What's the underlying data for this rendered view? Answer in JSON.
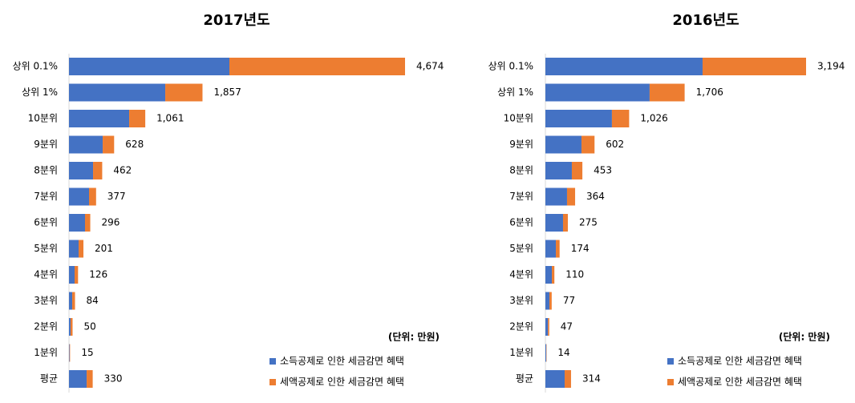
{
  "chart_data": [
    {
      "type": "bar",
      "title": "2017년도",
      "note": "(단위: 만원)",
      "categories": [
        "상위 0.1%",
        "상위 1%",
        "10분위",
        "9분위",
        "8분위",
        "7분위",
        "6분위",
        "5분위",
        "4분위",
        "3분위",
        "2분위",
        "1분위",
        "평균"
      ],
      "series": [
        {
          "name": "소득공제로 인한 세금감면 혜택",
          "color": "#4472c4",
          "values": [
            2231,
            1339,
            837,
            469,
            335,
            279,
            223,
            134,
            78,
            45,
            22,
            8,
            246
          ]
        },
        {
          "name": "세액공제로 인한 세금감면 혜택",
          "color": "#ed7d31",
          "values": [
            2443,
            518,
            224,
            159,
            127,
            98,
            73,
            67,
            48,
            39,
            28,
            7,
            84
          ]
        }
      ],
      "totals": [
        4674,
        1857,
        1061,
        628,
        462,
        377,
        296,
        201,
        126,
        84,
        50,
        15,
        330
      ],
      "total_labels": [
        "4,674",
        "1,857",
        "1,061",
        "628",
        "462",
        "377",
        "296",
        "201",
        "126",
        "84",
        "50",
        "15",
        "330"
      ],
      "xlim": [
        0,
        4674
      ]
    },
    {
      "type": "bar",
      "title": "2016년도",
      "note": "(단위: 만원)",
      "categories": [
        "상위 0.1%",
        "상위 1%",
        "10분위",
        "9분위",
        "8분위",
        "7분위",
        "6분위",
        "5분위",
        "4분위",
        "3분위",
        "2분위",
        "1분위",
        "평균"
      ],
      "series": [
        {
          "name": "소득공제로 인한 세금감면 혜택",
          "color": "#4472c4",
          "values": [
            1926,
            1277,
            815,
            442,
            324,
            265,
            216,
            128,
            79,
            49,
            31,
            10,
            236
          ]
        },
        {
          "name": "세액공제로 인한 세금감면 혜택",
          "color": "#ed7d31",
          "values": [
            1268,
            429,
            211,
            160,
            129,
            99,
            59,
            46,
            31,
            28,
            16,
            4,
            78
          ]
        }
      ],
      "totals": [
        3194,
        1706,
        1026,
        602,
        453,
        364,
        275,
        174,
        110,
        77,
        47,
        14,
        314
      ],
      "total_labels": [
        "3,194",
        "1,706",
        "1,026",
        "602",
        "453",
        "364",
        "275",
        "174",
        "110",
        "77",
        "47",
        "14",
        "314"
      ],
      "xlim": [
        0,
        3194
      ]
    }
  ]
}
